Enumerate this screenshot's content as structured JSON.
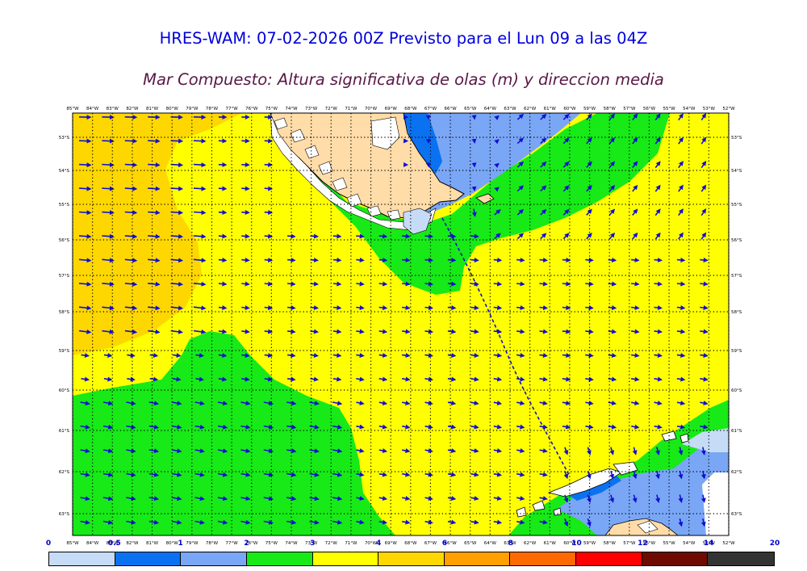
{
  "title": "HRES-WAM: 07-02-2026 00Z Previsto para el Lun 09 a las 04Z",
  "subtitle": "Mar Compuesto: Altura significativa de olas (m) y direccion media",
  "lon_labels": [
    "85°W",
    "84°W",
    "83°W",
    "82°W",
    "81°W",
    "80°W",
    "79°W",
    "78°W",
    "77°W",
    "76°W",
    "75°W",
    "74°W",
    "73°W",
    "72°W",
    "71°W",
    "70°W",
    "69°W",
    "68°W",
    "67°W",
    "66°W",
    "65°W",
    "64°W",
    "63°W",
    "62°W",
    "61°W",
    "60°W",
    "59°W",
    "58°W",
    "57°W",
    "56°W",
    "55°W",
    "54°W",
    "53°W",
    "52°W"
  ],
  "lat_labels": [
    "53°S",
    "54°S",
    "55°S",
    "56°S",
    "57°S",
    "58°S",
    "59°S",
    "60°S",
    "61°S",
    "62°S",
    "63°S"
  ],
  "colorbar": {
    "ticks": [
      "0",
      "0.5",
      "1",
      "2",
      "3",
      "4",
      "6",
      "8",
      "10",
      "12",
      "14",
      "20"
    ],
    "colors": [
      "#c6dbf6",
      "#0a72f0",
      "#7aa6f6",
      "#17ea17",
      "#ffff00",
      "#ffd700",
      "#ffa000",
      "#ff6a00",
      "#ff0000",
      "#6e0a00",
      "#333333"
    ]
  },
  "legend_colors": {
    "land": "#ffdca8",
    "arrows": "#1010d0",
    "dashed_track": "#1010d0"
  }
}
